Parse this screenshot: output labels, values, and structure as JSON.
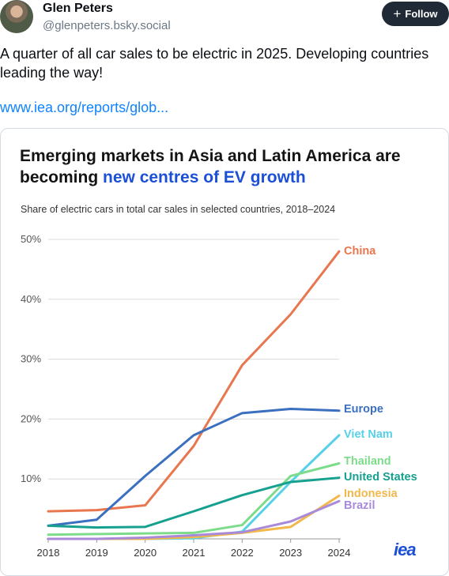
{
  "post": {
    "author_name": "Glen Peters",
    "author_handle": "@glenpeters.bsky.social",
    "follow_label": "Follow",
    "text": "A quarter of all car sales to be electric in 2025. Developing countries leading the way!",
    "link_text": "www.iea.org/reports/glob..."
  },
  "chart": {
    "title_part1": "Emerging markets in Asia and Latin America are becoming ",
    "title_accent": "new centres of EV growth",
    "subtitle": "Share of electric cars in total car sales in selected countries, 2018–2024",
    "logo_text": "iea"
  },
  "chart_data": {
    "type": "line",
    "x": [
      2018,
      2019,
      2020,
      2021,
      2022,
      2023,
      2024
    ],
    "ylim": [
      0,
      50
    ],
    "yticks": [
      "10%",
      "20%",
      "30%",
      "40%",
      "50%"
    ],
    "ytick_values": [
      10,
      20,
      30,
      40,
      50
    ],
    "xticks": [
      "2018",
      "2019",
      "2020",
      "2021",
      "2022",
      "2023",
      "2024"
    ],
    "grid": true,
    "series": [
      {
        "name": "China",
        "color": "#e8764e",
        "values": [
          4.6,
          4.8,
          5.6,
          15.5,
          29,
          37.5,
          48
        ]
      },
      {
        "name": "Europe",
        "color": "#3b6fbf",
        "values": [
          2.2,
          3.2,
          10.5,
          17.3,
          21,
          21.7,
          21.4
        ]
      },
      {
        "name": "Viet Nam",
        "color": "#58d1e8",
        "values": [
          0,
          0,
          0,
          0.1,
          1.2,
          9.5,
          17.3
        ]
      },
      {
        "name": "Thailand",
        "color": "#7ddc8a",
        "values": [
          0.7,
          0.8,
          0.9,
          1.0,
          2.3,
          10.5,
          12.6
        ]
      },
      {
        "name": "United States",
        "color": "#16a08f",
        "values": [
          2.2,
          1.9,
          2.0,
          4.6,
          7.3,
          9.5,
          10.2
        ]
      },
      {
        "name": "Indonesia",
        "color": "#f2b84b",
        "values": [
          0,
          0,
          0,
          0.3,
          1.0,
          2.0,
          7.2
        ]
      },
      {
        "name": "Brazil",
        "color": "#a98ad8",
        "values": [
          0,
          0,
          0.2,
          0.6,
          1.1,
          2.9,
          6.3
        ]
      }
    ]
  }
}
